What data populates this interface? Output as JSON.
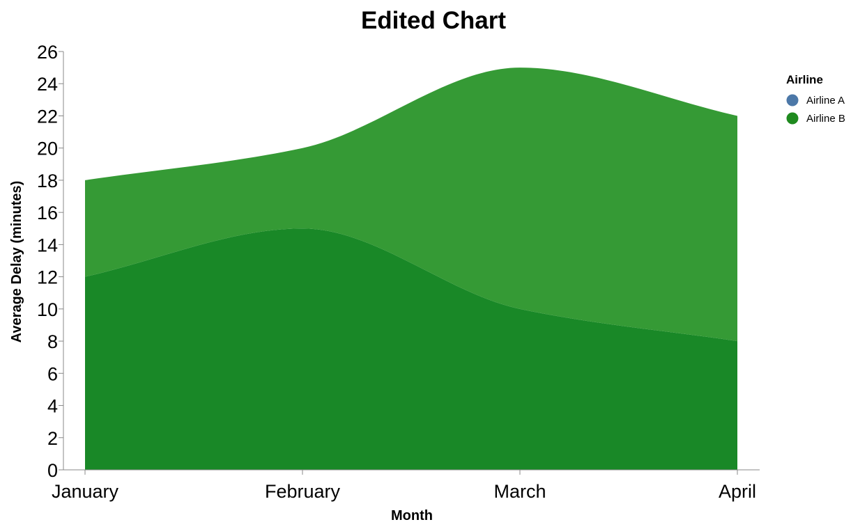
{
  "chart_data": {
    "type": "area",
    "title": "Edited Chart",
    "xlabel": "Month",
    "ylabel": "Average Delay (minutes)",
    "categories": [
      "January",
      "February",
      "March",
      "April"
    ],
    "ylim": [
      0,
      26
    ],
    "yticks": [
      0,
      2,
      4,
      6,
      8,
      10,
      12,
      14,
      16,
      18,
      20,
      22,
      24,
      26
    ],
    "stacked": true,
    "legend": {
      "title": "Airline",
      "placement": "top-right",
      "entries": [
        {
          "label": "Airline A",
          "color": "#4c78a8"
        },
        {
          "label": "Airline B",
          "color": "#1f8a1f"
        }
      ]
    },
    "series": [
      {
        "name": "Airline B",
        "values": [
          12,
          15,
          10,
          8
        ],
        "color": "#198827"
      },
      {
        "name": "Airline A",
        "values": [
          6,
          5,
          15,
          14
        ],
        "color": "#359a35"
      }
    ],
    "grid": false
  }
}
